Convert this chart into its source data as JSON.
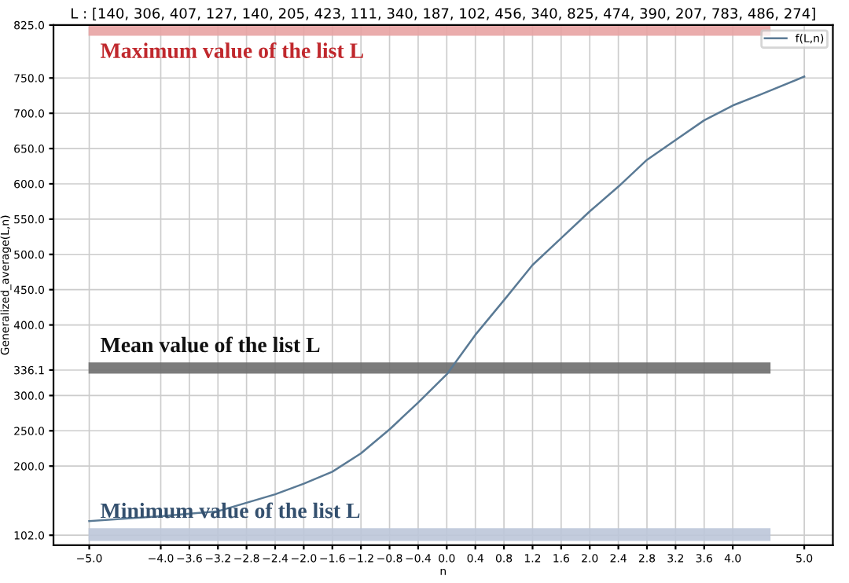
{
  "chart_data": {
    "type": "line",
    "title": "L : [140, 306, 407, 127, 140, 205, 423, 111, 340, 187, 102, 456, 340, 825, 474, 390, 207, 783, 486, 274]",
    "xlabel": "n",
    "ylabel": "Generalized_average(L,n)",
    "series": [
      {
        "name": "f(L,n)",
        "color": "#5a7a95",
        "x": [
          -5.0,
          -4.0,
          -3.2,
          -2.8,
          -2.4,
          -2.0,
          -1.6,
          -1.2,
          -0.8,
          -0.4,
          0.0,
          0.4,
          0.8,
          1.2,
          1.6,
          2.0,
          2.4,
          2.8,
          3.2,
          3.6,
          4.0,
          4.4,
          5.0
        ],
        "values": [
          122,
          129,
          136,
          148,
          160,
          175,
          192,
          218,
          252,
          290,
          330,
          386,
          435,
          485,
          523,
          561,
          596,
          634,
          662,
          690,
          711,
          727,
          752
        ]
      }
    ],
    "xlim": [
      -5.5,
      5.4
    ],
    "xticks": [
      {
        "value": -5.0,
        "label": "−5.0"
      },
      {
        "value": -4.0,
        "label": "−4.0"
      },
      {
        "value": -3.6,
        "label": "−3.6"
      },
      {
        "value": -3.2,
        "label": "−3.2"
      },
      {
        "value": -2.8,
        "label": "−2.8"
      },
      {
        "value": -2.4,
        "label": "−2.4"
      },
      {
        "value": -2.0,
        "label": "−2.0"
      },
      {
        "value": -1.6,
        "label": "−1.6"
      },
      {
        "value": -1.2,
        "label": "−1.2"
      },
      {
        "value": -0.8,
        "label": "−0.8"
      },
      {
        "value": -0.4,
        "label": "−0.4"
      },
      {
        "value": 0.0,
        "label": "0.0"
      },
      {
        "value": 0.4,
        "label": "0.4"
      },
      {
        "value": 0.8,
        "label": "0.8"
      },
      {
        "value": 1.2,
        "label": "1.2"
      },
      {
        "value": 1.6,
        "label": "1.6"
      },
      {
        "value": 2.0,
        "label": "2.0"
      },
      {
        "value": 2.4,
        "label": "2.4"
      },
      {
        "value": 2.8,
        "label": "2.8"
      },
      {
        "value": 3.2,
        "label": "3.2"
      },
      {
        "value": 3.6,
        "label": "3.6"
      },
      {
        "value": 4.0,
        "label": "4.0"
      },
      {
        "value": 5.0,
        "label": "5.0"
      }
    ],
    "ylim": [
      88,
      825
    ],
    "yticks": [
      {
        "value": 102,
        "label": "102.0"
      },
      {
        "value": 200,
        "label": "200.0"
      },
      {
        "value": 250,
        "label": "250.0"
      },
      {
        "value": 300,
        "label": "300.0"
      },
      {
        "value": 336.1,
        "label": "336.1"
      },
      {
        "value": 400,
        "label": "400.0"
      },
      {
        "value": 450,
        "label": "450.0"
      },
      {
        "value": 500,
        "label": "500.0"
      },
      {
        "value": 550,
        "label": "550.0"
      },
      {
        "value": 600,
        "label": "600.0"
      },
      {
        "value": 650,
        "label": "650.0"
      },
      {
        "value": 700,
        "label": "700.0"
      },
      {
        "value": 750,
        "label": "750.0"
      },
      {
        "value": 825,
        "label": "825.0"
      }
    ],
    "bands": [
      {
        "axis": "y",
        "from": 810,
        "to": 825,
        "label": "Maximum value of the list L",
        "color": "#e8a3a3"
      },
      {
        "axis": "y",
        "from": 331,
        "to": 347,
        "label": "Mean value of the list L",
        "color": "#6e6e6e"
      },
      {
        "axis": "y",
        "from": 94,
        "to": 112,
        "label": "Minimum value of the list L",
        "color": "#bcc7d9"
      }
    ],
    "grid": true,
    "legend": "top right",
    "marker": "none",
    "line_style": "solid"
  }
}
